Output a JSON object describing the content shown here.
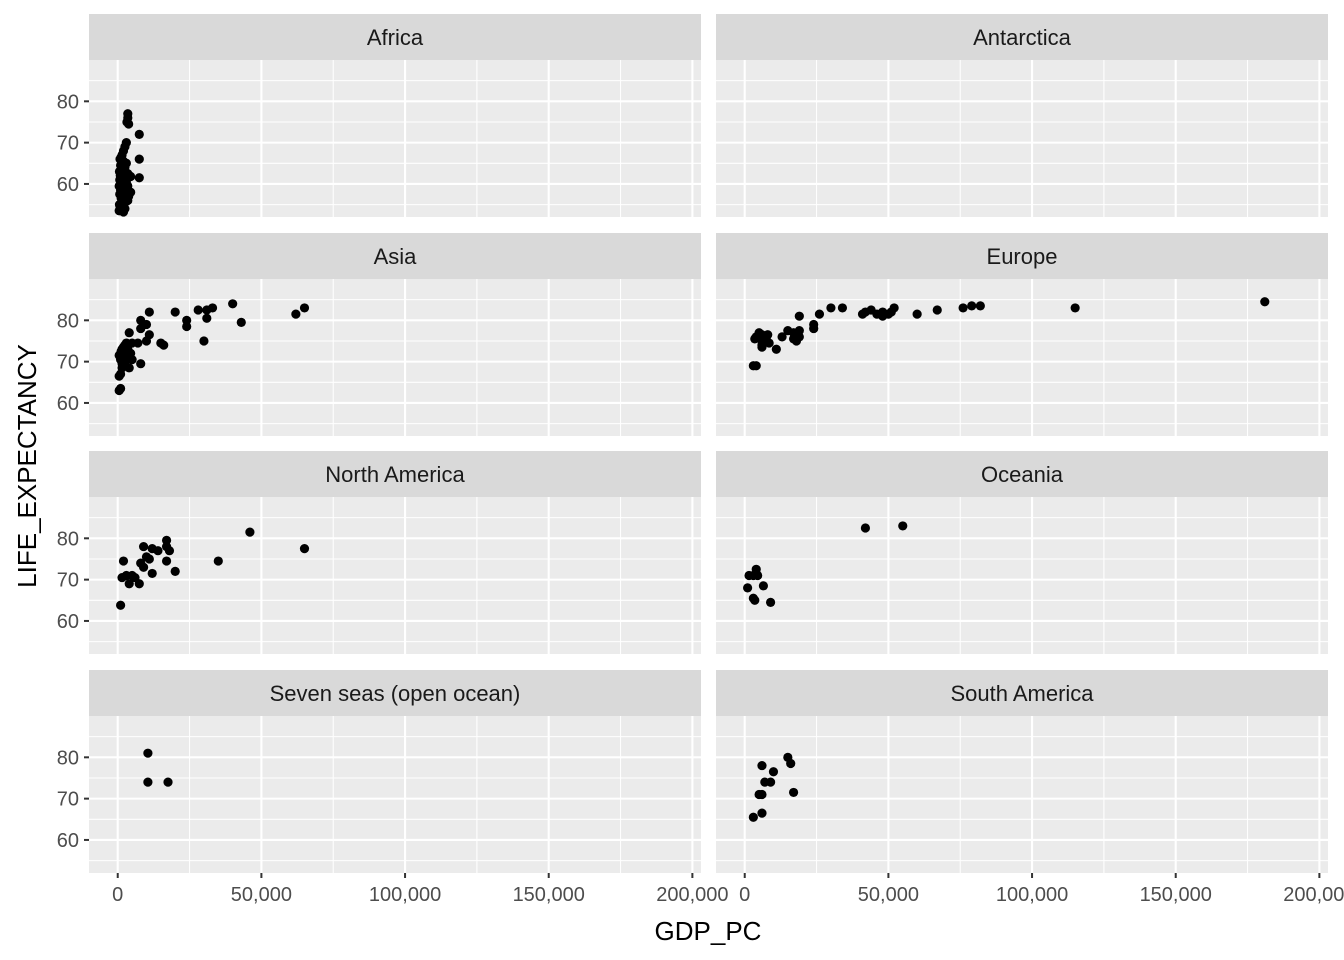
{
  "chart_data": {
    "type": "scatter",
    "facet_layout": "wrap-2-columns",
    "xlabel": "GDP_PC",
    "ylabel": "LIFE_EXPECTANCY",
    "xlim": [
      -10000,
      203000
    ],
    "ylim": [
      52,
      90
    ],
    "x_ticks": [
      0,
      50000,
      100000,
      150000,
      200000
    ],
    "x_tick_labels": [
      "0",
      "50,000",
      "100,000",
      "150,000",
      "200,000"
    ],
    "y_ticks": [
      60,
      70,
      80
    ],
    "y_tick_labels": [
      "60",
      "70",
      "80"
    ],
    "grid": true,
    "point_color": "#000000",
    "strip_color": "#d9d9d9",
    "panel_color": "#ebebeb",
    "panels": [
      {
        "name": "Africa",
        "points": [
          [
            3500,
            77
          ],
          [
            3500,
            76
          ],
          [
            3200,
            75
          ],
          [
            3800,
            74.5
          ],
          [
            7500,
            72
          ],
          [
            3000,
            70
          ],
          [
            2500,
            69
          ],
          [
            2000,
            68
          ],
          [
            1500,
            67
          ],
          [
            1200,
            66.5
          ],
          [
            800,
            66
          ],
          [
            2000,
            65.5
          ],
          [
            3000,
            65
          ],
          [
            1000,
            64.5
          ],
          [
            2500,
            64
          ],
          [
            1500,
            63.5
          ],
          [
            7500,
            66
          ],
          [
            600,
            63
          ],
          [
            1800,
            62.5
          ],
          [
            3500,
            62.5
          ],
          [
            900,
            62
          ],
          [
            2200,
            61.8
          ],
          [
            4000,
            62
          ],
          [
            4500,
            61.8
          ],
          [
            7500,
            61.5
          ],
          [
            700,
            61
          ],
          [
            1500,
            61
          ],
          [
            3000,
            60.5
          ],
          [
            1200,
            60
          ],
          [
            2500,
            60
          ],
          [
            500,
            59.5
          ],
          [
            3500,
            59.5
          ],
          [
            1800,
            59
          ],
          [
            1000,
            58.5
          ],
          [
            4500,
            58
          ],
          [
            2800,
            58
          ],
          [
            700,
            57.5
          ],
          [
            3800,
            57
          ],
          [
            1500,
            57
          ],
          [
            1200,
            56.5
          ],
          [
            3500,
            56
          ],
          [
            2500,
            55.5
          ],
          [
            600,
            55
          ],
          [
            1500,
            54.5
          ],
          [
            800,
            54
          ],
          [
            2500,
            54
          ],
          [
            500,
            53.5
          ],
          [
            1500,
            53.5
          ],
          [
            2000,
            53.2
          ]
        ]
      },
      {
        "name": "Antarctica",
        "points": []
      },
      {
        "name": "Asia",
        "points": [
          [
            40000,
            84
          ],
          [
            33000,
            83
          ],
          [
            65000,
            83
          ],
          [
            28000,
            82.5
          ],
          [
            31000,
            82.5
          ],
          [
            20000,
            82
          ],
          [
            11000,
            82
          ],
          [
            62000,
            81.5
          ],
          [
            31000,
            80.5
          ],
          [
            24000,
            80
          ],
          [
            8000,
            80
          ],
          [
            43000,
            79.5
          ],
          [
            10000,
            79
          ],
          [
            24000,
            78.5
          ],
          [
            8000,
            78
          ],
          [
            11000,
            76.5
          ],
          [
            4000,
            77
          ],
          [
            30000,
            75
          ],
          [
            10000,
            75
          ],
          [
            15000,
            74.5
          ],
          [
            7000,
            74.5
          ],
          [
            5000,
            74.5
          ],
          [
            3000,
            74.5
          ],
          [
            16000,
            74
          ],
          [
            2500,
            74
          ],
          [
            2000,
            73.5
          ],
          [
            1500,
            73
          ],
          [
            3500,
            73
          ],
          [
            1200,
            72.5
          ],
          [
            4500,
            72
          ],
          [
            1000,
            72
          ],
          [
            3000,
            71.5
          ],
          [
            500,
            71.5
          ],
          [
            2000,
            71
          ],
          [
            1000,
            70.5
          ],
          [
            5000,
            70.5
          ],
          [
            2500,
            70
          ],
          [
            8000,
            69.5
          ],
          [
            1500,
            69.5
          ],
          [
            4000,
            68.5
          ],
          [
            1500,
            68.5
          ],
          [
            1000,
            67
          ],
          [
            500,
            66.5
          ],
          [
            1000,
            63.5
          ],
          [
            500,
            63
          ]
        ]
      },
      {
        "name": "Europe",
        "points": [
          [
            181000,
            84.5
          ],
          [
            82000,
            83.5
          ],
          [
            79000,
            83.5
          ],
          [
            76000,
            83
          ],
          [
            115000,
            83
          ],
          [
            52000,
            83
          ],
          [
            34000,
            83
          ],
          [
            30000,
            83
          ],
          [
            44000,
            82.5
          ],
          [
            67000,
            82.5
          ],
          [
            42000,
            82
          ],
          [
            48000,
            82
          ],
          [
            51000,
            82
          ],
          [
            41000,
            81.5
          ],
          [
            46000,
            81.5
          ],
          [
            60000,
            81.5
          ],
          [
            50000,
            81.5
          ],
          [
            26000,
            81.5
          ],
          [
            48000,
            81
          ],
          [
            19000,
            81
          ],
          [
            24000,
            79
          ],
          [
            24000,
            78
          ],
          [
            15000,
            77.5
          ],
          [
            19000,
            77.5
          ],
          [
            17000,
            77
          ],
          [
            5000,
            77
          ],
          [
            8000,
            76.5
          ],
          [
            6000,
            76.5
          ],
          [
            4000,
            76
          ],
          [
            13000,
            76
          ],
          [
            19000,
            76
          ],
          [
            17000,
            75.5
          ],
          [
            7500,
            75.5
          ],
          [
            6000,
            75
          ],
          [
            3500,
            75.5
          ],
          [
            8500,
            74.5
          ],
          [
            6000,
            74
          ],
          [
            18000,
            75
          ],
          [
            11000,
            73
          ],
          [
            6000,
            73.5
          ],
          [
            4000,
            69
          ],
          [
            3000,
            69
          ]
        ]
      },
      {
        "name": "North America",
        "points": [
          [
            46000,
            81.5
          ],
          [
            17000,
            79.5
          ],
          [
            9000,
            78
          ],
          [
            17000,
            78
          ],
          [
            12000,
            77.5
          ],
          [
            14000,
            77
          ],
          [
            65000,
            77.5
          ],
          [
            18000,
            77
          ],
          [
            10000,
            75.5
          ],
          [
            11000,
            75
          ],
          [
            35000,
            74.5
          ],
          [
            17000,
            74.5
          ],
          [
            2000,
            74.5
          ],
          [
            8000,
            74
          ],
          [
            9000,
            73
          ],
          [
            20000,
            72
          ],
          [
            12000,
            71.5
          ],
          [
            5000,
            71
          ],
          [
            3000,
            71
          ],
          [
            1500,
            70.5
          ],
          [
            6000,
            70.5
          ],
          [
            4000,
            69
          ],
          [
            7500,
            69
          ],
          [
            1000,
            63.8
          ]
        ]
      },
      {
        "name": "Oceania",
        "points": [
          [
            55000,
            83
          ],
          [
            42000,
            82.5
          ],
          [
            4000,
            72.5
          ],
          [
            4000,
            71.5
          ],
          [
            3000,
            71
          ],
          [
            4500,
            71
          ],
          [
            1500,
            71
          ],
          [
            6500,
            68.5
          ],
          [
            1000,
            68
          ],
          [
            3000,
            65.5
          ],
          [
            3500,
            65
          ],
          [
            9000,
            64.5
          ]
        ]
      },
      {
        "name": "Seven seas (open ocean)",
        "points": [
          [
            10500,
            81
          ],
          [
            10500,
            74
          ],
          [
            17500,
            74
          ]
        ]
      },
      {
        "name": "South America",
        "points": [
          [
            15000,
            80
          ],
          [
            16000,
            78.5
          ],
          [
            6000,
            78
          ],
          [
            10000,
            76.5
          ],
          [
            7000,
            74
          ],
          [
            9000,
            74
          ],
          [
            5000,
            71
          ],
          [
            6000,
            71
          ],
          [
            17000,
            71.5
          ],
          [
            6000,
            66.5
          ],
          [
            3000,
            65.5
          ]
        ]
      }
    ]
  }
}
